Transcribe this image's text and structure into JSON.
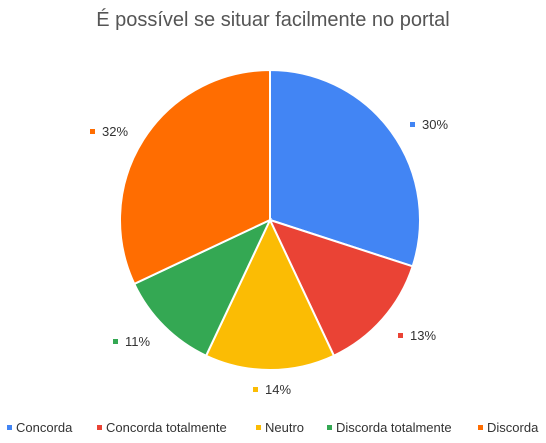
{
  "chart_data": {
    "type": "pie",
    "title": "É possível se situar facilmente no portal",
    "legend_position": "bottom",
    "slices": [
      {
        "name": "Concorda",
        "value": 30,
        "label": "30%",
        "color": "#4285F4"
      },
      {
        "name": "Concorda totalmente",
        "value": 13,
        "label": "13%",
        "color": "#EA4335"
      },
      {
        "name": "Neutro",
        "value": 14,
        "label": "14%",
        "color": "#FBBC04"
      },
      {
        "name": "Discorda totalmente",
        "value": 11,
        "label": "11%",
        "color": "#34A853"
      },
      {
        "name": "Discorda",
        "value": 32,
        "label": "32%",
        "color": "#FF6D01"
      }
    ]
  }
}
